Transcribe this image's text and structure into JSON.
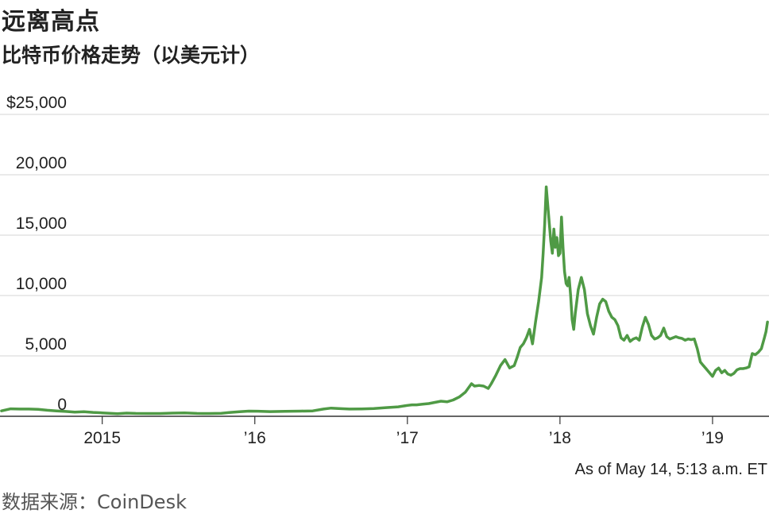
{
  "title": "远离高点",
  "subtitle": "比特币价格走势（以美元计）",
  "note": "As of May 14, 5:13 a.m. ET",
  "source": "数据来源：CoinDesk",
  "chart_data": {
    "type": "line",
    "title": "远离高点",
    "subtitle": "比特币价格走势（以美元计）",
    "xlabel": "",
    "ylabel": "",
    "xlim": [
      2014.33,
      2019.37
    ],
    "ylim": [
      0,
      25000
    ],
    "grid": true,
    "yticks": [
      {
        "value": 25000,
        "label": "$25,000"
      },
      {
        "value": 20000,
        "label": "20,000"
      },
      {
        "value": 15000,
        "label": "15,000"
      },
      {
        "value": 10000,
        "label": "10,000"
      },
      {
        "value": 5000,
        "label": "5,000"
      },
      {
        "value": 0,
        "label": "0"
      }
    ],
    "xticks": [
      {
        "value": 2015,
        "label": "2015"
      },
      {
        "value": 2016,
        "label": "’16"
      },
      {
        "value": 2017,
        "label": "’17"
      },
      {
        "value": 2018,
        "label": "’18"
      },
      {
        "value": 2019,
        "label": "’19"
      }
    ],
    "series": [
      {
        "color": "#4f9a45",
        "x": [
          2014.34,
          2014.4,
          2014.46,
          2014.52,
          2014.58,
          2014.64,
          2014.7,
          2014.76,
          2014.82,
          2014.88,
          2014.94,
          2015.0,
          2015.05,
          2015.1,
          2015.16,
          2015.22,
          2015.3,
          2015.38,
          2015.46,
          2015.54,
          2015.62,
          2015.7,
          2015.78,
          2015.84,
          2015.9,
          2015.96,
          2016.02,
          2016.1,
          2016.2,
          2016.3,
          2016.38,
          2016.45,
          2016.5,
          2016.55,
          2016.62,
          2016.7,
          2016.78,
          2016.86,
          2016.94,
          2017.0,
          2017.03,
          2017.06,
          2017.1,
          2017.14,
          2017.18,
          2017.22,
          2017.26,
          2017.3,
          2017.34,
          2017.38,
          2017.42,
          2017.44,
          2017.47,
          2017.5,
          2017.53,
          2017.55,
          2017.58,
          2017.61,
          2017.64,
          2017.67,
          2017.7,
          2017.72,
          2017.74,
          2017.76,
          2017.78,
          2017.8,
          2017.82,
          2017.84,
          2017.86,
          2017.88,
          2017.89,
          2017.9,
          2017.91,
          2017.92,
          2017.93,
          2017.94,
          2017.95,
          2017.96,
          2017.97,
          2017.98,
          2017.99,
          2018.0,
          2018.01,
          2018.02,
          2018.03,
          2018.04,
          2018.05,
          2018.06,
          2018.07,
          2018.08,
          2018.09,
          2018.1,
          2018.11,
          2018.12,
          2018.14,
          2018.16,
          2018.18,
          2018.2,
          2018.22,
          2018.24,
          2018.26,
          2018.28,
          2018.3,
          2018.32,
          2018.34,
          2018.36,
          2018.38,
          2018.4,
          2018.42,
          2018.44,
          2018.46,
          2018.48,
          2018.5,
          2018.52,
          2018.54,
          2018.56,
          2018.58,
          2018.6,
          2018.62,
          2018.64,
          2018.66,
          2018.68,
          2018.7,
          2018.72,
          2018.74,
          2018.76,
          2018.78,
          2018.8,
          2018.82,
          2018.84,
          2018.86,
          2018.88,
          2018.9,
          2018.92,
          2018.94,
          2018.96,
          2018.98,
          2019.0,
          2019.02,
          2019.04,
          2019.06,
          2019.08,
          2019.1,
          2019.12,
          2019.14,
          2019.16,
          2019.18,
          2019.2,
          2019.22,
          2019.24,
          2019.26,
          2019.28,
          2019.3,
          2019.32,
          2019.34,
          2019.35,
          2019.36
        ],
        "y": [
          450,
          620,
          600,
          600,
          580,
          500,
          450,
          400,
          350,
          380,
          320,
          280,
          250,
          220,
          260,
          240,
          230,
          230,
          260,
          280,
          240,
          230,
          250,
          320,
          380,
          430,
          420,
          390,
          410,
          430,
          450,
          600,
          680,
          640,
          600,
          610,
          640,
          720,
          780,
          900,
          950,
          950,
          1000,
          1050,
          1150,
          1250,
          1200,
          1350,
          1600,
          2000,
          2700,
          2500,
          2550,
          2500,
          2300,
          2700,
          3400,
          4200,
          4700,
          4000,
          4200,
          4900,
          5700,
          6000,
          6500,
          7200,
          6000,
          7800,
          9500,
          11500,
          13500,
          16000,
          19000,
          17500,
          16000,
          14500,
          13500,
          15500,
          14000,
          14800,
          13300,
          13500,
          16500,
          14000,
          12000,
          11000,
          10800,
          11500,
          10000,
          8000,
          7200,
          8500,
          9500,
          10500,
          11500,
          10500,
          8500,
          7500,
          6800,
          8200,
          9300,
          9700,
          9500,
          8700,
          8200,
          8000,
          7500,
          6500,
          6300,
          6700,
          6200,
          6400,
          6500,
          6300,
          7400,
          8200,
          7600,
          6700,
          6400,
          6500,
          6700,
          7300,
          6600,
          6400,
          6500,
          6600,
          6500,
          6450,
          6300,
          6400,
          6350,
          6400,
          5600,
          4500,
          4200,
          3900,
          3600,
          3300,
          3800,
          4000,
          3600,
          3800,
          3500,
          3400,
          3550,
          3850,
          3950,
          3950,
          4000,
          4100,
          5200,
          5100,
          5300,
          5600,
          6500,
          7000,
          7800
        ]
      }
    ]
  }
}
